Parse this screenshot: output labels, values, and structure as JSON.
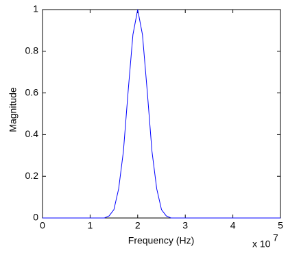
{
  "chart_data": {
    "type": "line",
    "x_label": "Frequency (Hz)",
    "y_label": "Magnitude",
    "x_multiplier": "x 10",
    "x_multiplier_exponent": "7",
    "x": [
      0,
      1,
      1.3,
      1.4,
      1.5,
      1.6,
      1.7,
      1.8,
      1.9,
      2.0,
      2.1,
      2.2,
      2.3,
      2.4,
      2.5,
      2.6,
      2.7,
      3,
      4,
      5
    ],
    "series": [
      {
        "color": "#0000ff",
        "values": [
          0,
          0,
          0,
          0.01,
          0.04,
          0.14,
          0.32,
          0.61,
          0.88,
          1,
          0.88,
          0.61,
          0.32,
          0.14,
          0.04,
          0.01,
          0,
          0,
          0,
          0
        ]
      }
    ],
    "xlim": [
      0,
      5
    ],
    "xticks": [
      0,
      1,
      2,
      3,
      4,
      5
    ],
    "ylim": [
      0,
      1
    ],
    "yticks": [
      0,
      0.2,
      0.4,
      0.6,
      0.8,
      1
    ],
    "grid": false
  }
}
